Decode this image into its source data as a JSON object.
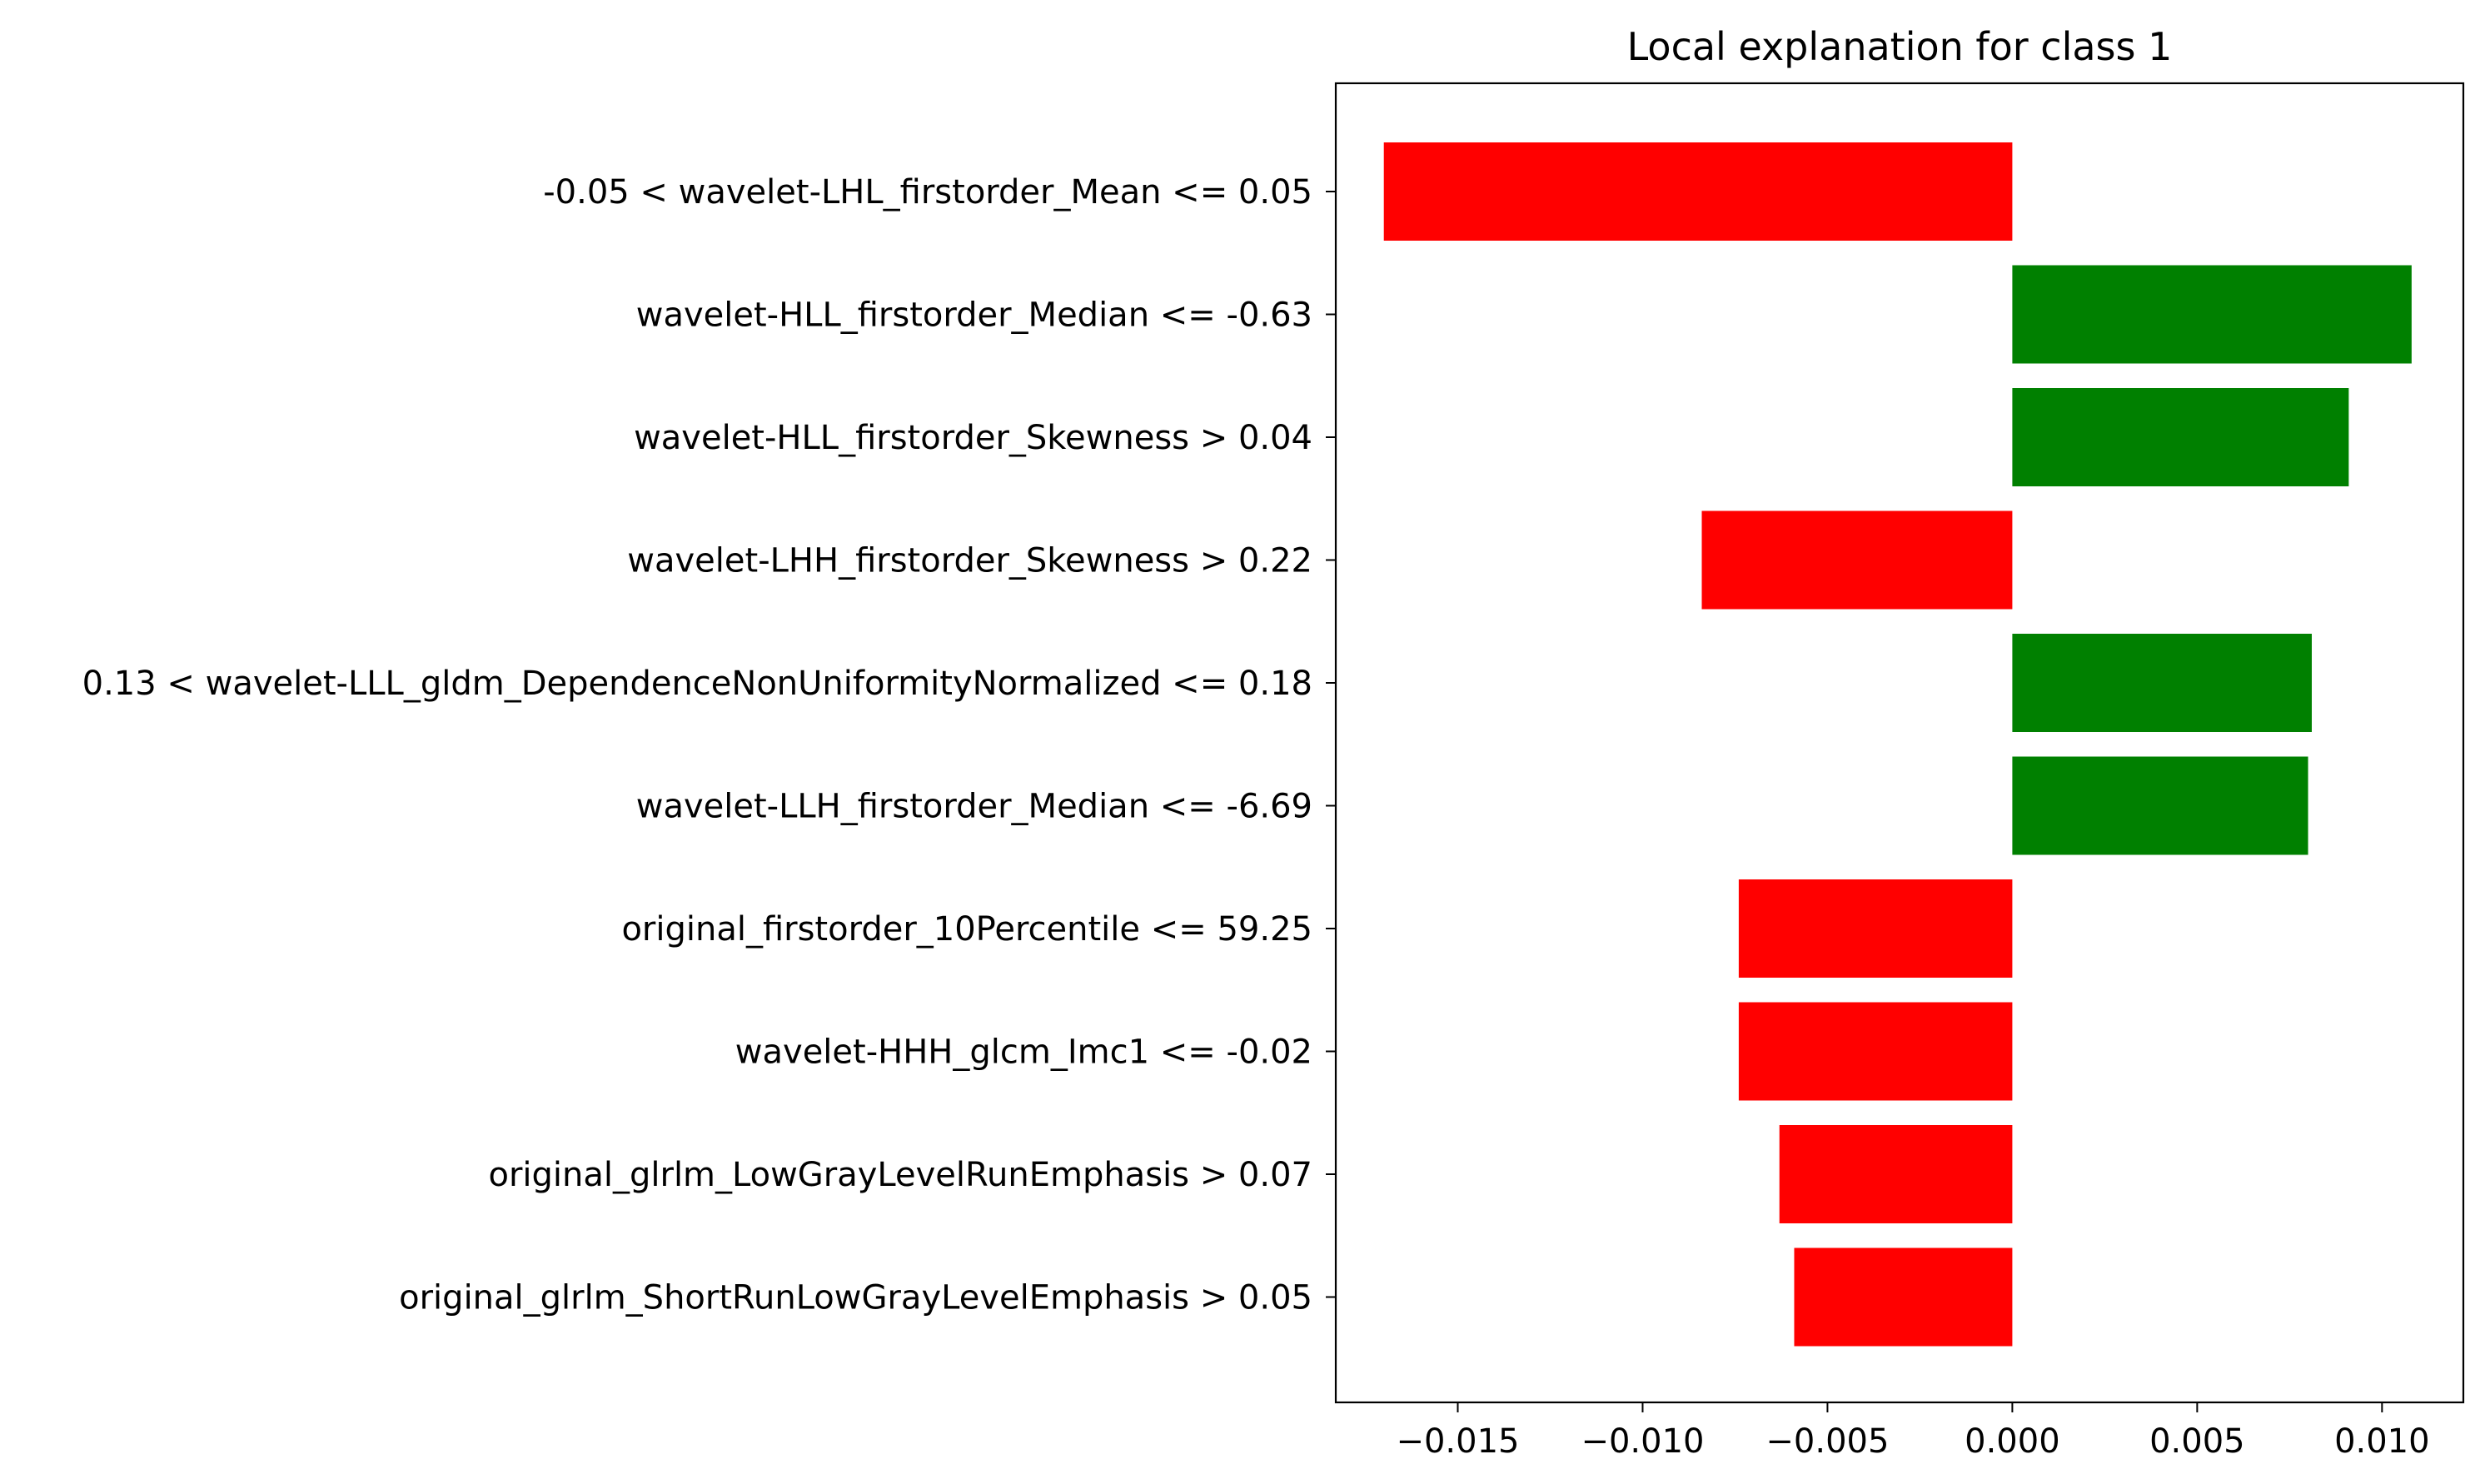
{
  "chart_data": {
    "type": "bar",
    "orientation": "horizontal",
    "title": "Local explanation for class 1",
    "xlabel": "",
    "ylabel": "",
    "xlim": [
      -0.0183,
      0.0122
    ],
    "xticks": [
      -0.015,
      -0.01,
      -0.005,
      0.0,
      0.005,
      0.01
    ],
    "xtick_labels": [
      "−0.015",
      "−0.010",
      "−0.005",
      "0.000",
      "0.005",
      "0.010"
    ],
    "grid": false,
    "legend": "none",
    "colors": {
      "positive": "#008000",
      "negative": "#ff0000",
      "axis": "#000000",
      "background": "#ffffff"
    },
    "categories": [
      "-0.05 < wavelet-LHL_firstorder_Mean <= 0.05",
      "wavelet-HLL_firstorder_Median <= -0.63",
      "wavelet-HLL_firstorder_Skewness > 0.04",
      "wavelet-LHH_firstorder_Skewness > 0.22",
      "0.13 < wavelet-LLL_gldm_DependenceNonUniformityNormalized <= 0.18",
      "wavelet-LLH_firstorder_Median <= -6.69",
      "original_firstorder_10Percentile <= 59.25",
      "wavelet-HHH_glcm_Imc1 <= -0.02",
      "original_glrlm_LowGrayLevelRunEmphasis > 0.07",
      "original_glrlm_ShortRunLowGrayLevelEmphasis > 0.05"
    ],
    "values": [
      -0.017,
      0.0108,
      0.0091,
      -0.0084,
      0.0081,
      0.008,
      -0.0074,
      -0.0074,
      -0.0063,
      -0.0059
    ]
  }
}
